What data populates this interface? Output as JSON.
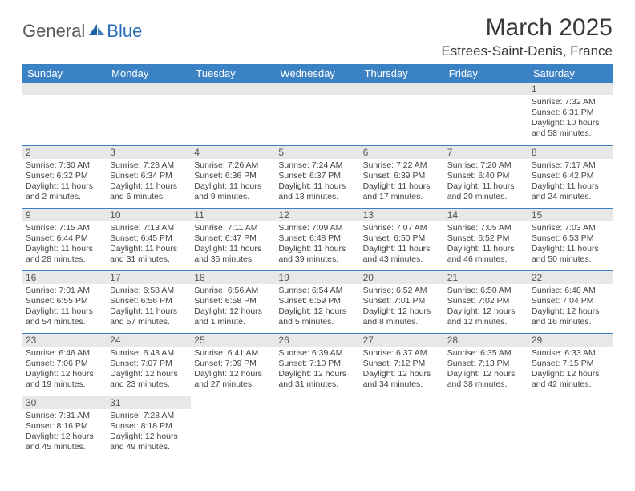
{
  "logo": {
    "general": "General",
    "blue": "Blue"
  },
  "title": "March 2025",
  "location": "Estrees-Saint-Denis, France",
  "colors": {
    "header_bg": "#3b82c4",
    "header_text": "#ffffff",
    "daynum_bg": "#e8e8e8",
    "border": "#3b82c4",
    "body_text": "#3a3a3a"
  },
  "weekdays": [
    "Sunday",
    "Monday",
    "Tuesday",
    "Wednesday",
    "Thursday",
    "Friday",
    "Saturday"
  ],
  "weeks": [
    [
      null,
      null,
      null,
      null,
      null,
      null,
      {
        "n": "1",
        "sr": "Sunrise: 7:32 AM",
        "ss": "Sunset: 6:31 PM",
        "dl": "Daylight: 10 hours and 58 minutes."
      }
    ],
    [
      {
        "n": "2",
        "sr": "Sunrise: 7:30 AM",
        "ss": "Sunset: 6:32 PM",
        "dl": "Daylight: 11 hours and 2 minutes."
      },
      {
        "n": "3",
        "sr": "Sunrise: 7:28 AM",
        "ss": "Sunset: 6:34 PM",
        "dl": "Daylight: 11 hours and 6 minutes."
      },
      {
        "n": "4",
        "sr": "Sunrise: 7:26 AM",
        "ss": "Sunset: 6:36 PM",
        "dl": "Daylight: 11 hours and 9 minutes."
      },
      {
        "n": "5",
        "sr": "Sunrise: 7:24 AM",
        "ss": "Sunset: 6:37 PM",
        "dl": "Daylight: 11 hours and 13 minutes."
      },
      {
        "n": "6",
        "sr": "Sunrise: 7:22 AM",
        "ss": "Sunset: 6:39 PM",
        "dl": "Daylight: 11 hours and 17 minutes."
      },
      {
        "n": "7",
        "sr": "Sunrise: 7:20 AM",
        "ss": "Sunset: 6:40 PM",
        "dl": "Daylight: 11 hours and 20 minutes."
      },
      {
        "n": "8",
        "sr": "Sunrise: 7:17 AM",
        "ss": "Sunset: 6:42 PM",
        "dl": "Daylight: 11 hours and 24 minutes."
      }
    ],
    [
      {
        "n": "9",
        "sr": "Sunrise: 7:15 AM",
        "ss": "Sunset: 6:44 PM",
        "dl": "Daylight: 11 hours and 28 minutes."
      },
      {
        "n": "10",
        "sr": "Sunrise: 7:13 AM",
        "ss": "Sunset: 6:45 PM",
        "dl": "Daylight: 11 hours and 31 minutes."
      },
      {
        "n": "11",
        "sr": "Sunrise: 7:11 AM",
        "ss": "Sunset: 6:47 PM",
        "dl": "Daylight: 11 hours and 35 minutes."
      },
      {
        "n": "12",
        "sr": "Sunrise: 7:09 AM",
        "ss": "Sunset: 6:48 PM",
        "dl": "Daylight: 11 hours and 39 minutes."
      },
      {
        "n": "13",
        "sr": "Sunrise: 7:07 AM",
        "ss": "Sunset: 6:50 PM",
        "dl": "Daylight: 11 hours and 43 minutes."
      },
      {
        "n": "14",
        "sr": "Sunrise: 7:05 AM",
        "ss": "Sunset: 6:52 PM",
        "dl": "Daylight: 11 hours and 46 minutes."
      },
      {
        "n": "15",
        "sr": "Sunrise: 7:03 AM",
        "ss": "Sunset: 6:53 PM",
        "dl": "Daylight: 11 hours and 50 minutes."
      }
    ],
    [
      {
        "n": "16",
        "sr": "Sunrise: 7:01 AM",
        "ss": "Sunset: 6:55 PM",
        "dl": "Daylight: 11 hours and 54 minutes."
      },
      {
        "n": "17",
        "sr": "Sunrise: 6:58 AM",
        "ss": "Sunset: 6:56 PM",
        "dl": "Daylight: 11 hours and 57 minutes."
      },
      {
        "n": "18",
        "sr": "Sunrise: 6:56 AM",
        "ss": "Sunset: 6:58 PM",
        "dl": "Daylight: 12 hours and 1 minute."
      },
      {
        "n": "19",
        "sr": "Sunrise: 6:54 AM",
        "ss": "Sunset: 6:59 PM",
        "dl": "Daylight: 12 hours and 5 minutes."
      },
      {
        "n": "20",
        "sr": "Sunrise: 6:52 AM",
        "ss": "Sunset: 7:01 PM",
        "dl": "Daylight: 12 hours and 8 minutes."
      },
      {
        "n": "21",
        "sr": "Sunrise: 6:50 AM",
        "ss": "Sunset: 7:02 PM",
        "dl": "Daylight: 12 hours and 12 minutes."
      },
      {
        "n": "22",
        "sr": "Sunrise: 6:48 AM",
        "ss": "Sunset: 7:04 PM",
        "dl": "Daylight: 12 hours and 16 minutes."
      }
    ],
    [
      {
        "n": "23",
        "sr": "Sunrise: 6:46 AM",
        "ss": "Sunset: 7:06 PM",
        "dl": "Daylight: 12 hours and 19 minutes."
      },
      {
        "n": "24",
        "sr": "Sunrise: 6:43 AM",
        "ss": "Sunset: 7:07 PM",
        "dl": "Daylight: 12 hours and 23 minutes."
      },
      {
        "n": "25",
        "sr": "Sunrise: 6:41 AM",
        "ss": "Sunset: 7:09 PM",
        "dl": "Daylight: 12 hours and 27 minutes."
      },
      {
        "n": "26",
        "sr": "Sunrise: 6:39 AM",
        "ss": "Sunset: 7:10 PM",
        "dl": "Daylight: 12 hours and 31 minutes."
      },
      {
        "n": "27",
        "sr": "Sunrise: 6:37 AM",
        "ss": "Sunset: 7:12 PM",
        "dl": "Daylight: 12 hours and 34 minutes."
      },
      {
        "n": "28",
        "sr": "Sunrise: 6:35 AM",
        "ss": "Sunset: 7:13 PM",
        "dl": "Daylight: 12 hours and 38 minutes."
      },
      {
        "n": "29",
        "sr": "Sunrise: 6:33 AM",
        "ss": "Sunset: 7:15 PM",
        "dl": "Daylight: 12 hours and 42 minutes."
      }
    ],
    [
      {
        "n": "30",
        "sr": "Sunrise: 7:31 AM",
        "ss": "Sunset: 8:16 PM",
        "dl": "Daylight: 12 hours and 45 minutes."
      },
      {
        "n": "31",
        "sr": "Sunrise: 7:28 AM",
        "ss": "Sunset: 8:18 PM",
        "dl": "Daylight: 12 hours and 49 minutes."
      },
      null,
      null,
      null,
      null,
      null
    ]
  ]
}
